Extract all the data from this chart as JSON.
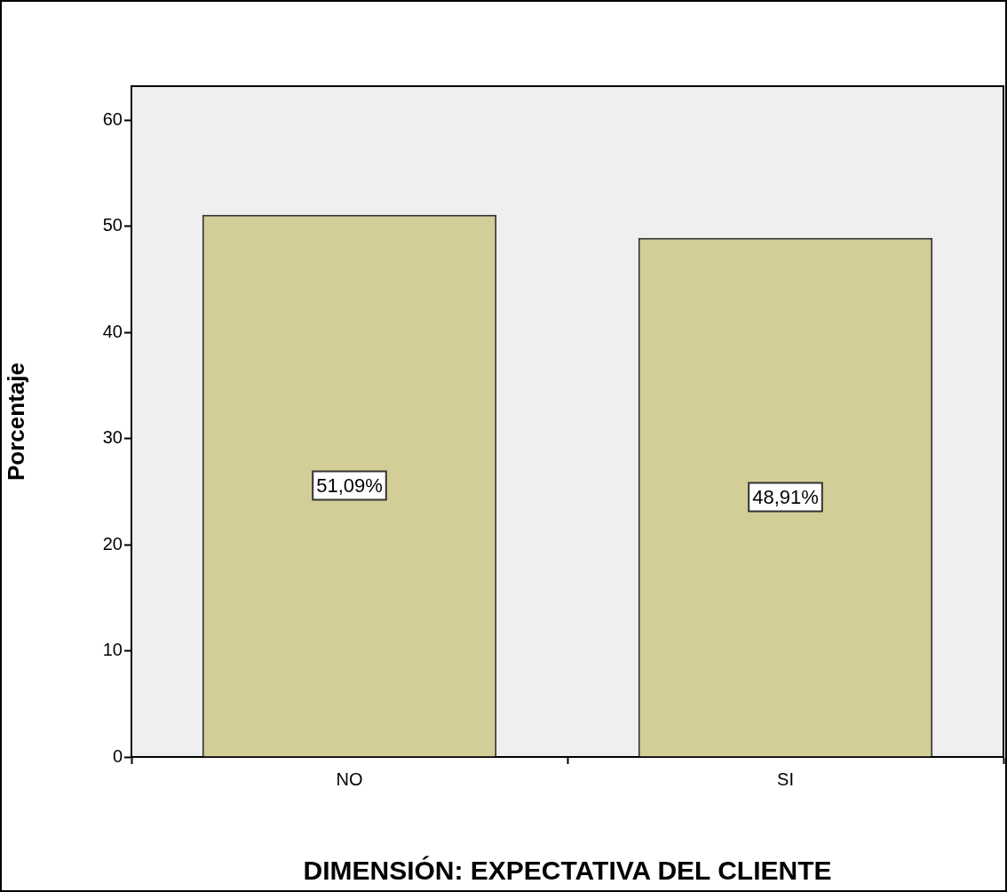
{
  "chart_data": {
    "type": "bar",
    "xlabel": "DIMENSIÓN: EXPECTATIVA DEL CLIENTE",
    "ylabel": "Porcentaje",
    "categories": [
      "NO",
      "SI"
    ],
    "values": [
      51.09,
      48.91
    ],
    "value_labels": [
      "51,09%",
      "48,91%"
    ],
    "color": "#d3ce97",
    "ylim": [
      0,
      63.2
    ],
    "yticks": [
      0,
      10,
      20,
      30,
      40,
      50,
      60
    ],
    "grid": false,
    "legend": false
  }
}
